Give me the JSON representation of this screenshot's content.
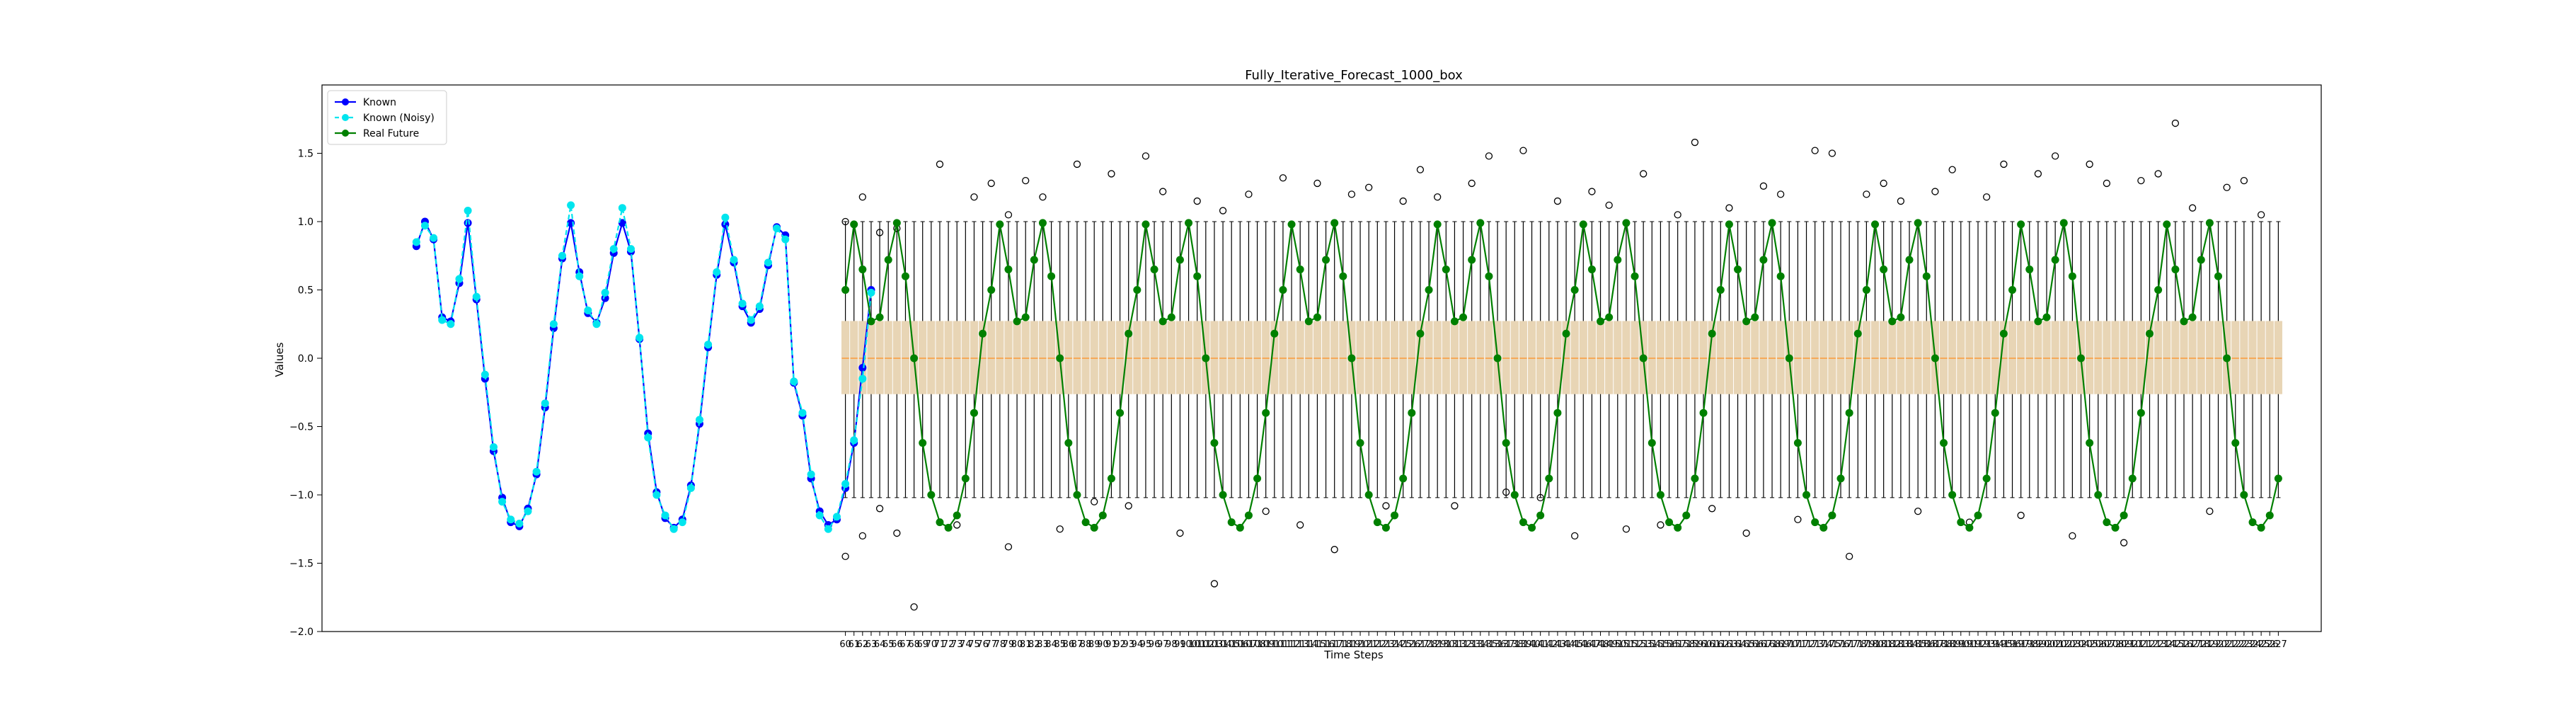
{
  "chart_data": {
    "type": "box",
    "title": "Fully_Iterative_Forecast_1000_box",
    "xlabel": "Time Steps",
    "ylabel": "Values",
    "ylim": [
      -2.0,
      2.0
    ],
    "y_ticks": [
      -2.0,
      -1.5,
      -1.0,
      -0.5,
      0.0,
      0.5,
      1.0,
      1.5
    ],
    "y_tick_labels": [
      "−2.0",
      "−1.5",
      "−1.0",
      "−0.5",
      "0.0",
      "0.5",
      "1.0",
      "1.5"
    ],
    "xlim": [
      -1,
      232
    ],
    "known_start": 10,
    "forecast_start": 60,
    "x_tick_start": 60,
    "x_tick_end": 227,
    "legend": {
      "position": "upper-left",
      "entries": [
        "Known",
        "Known (Noisy)",
        "Real Future"
      ]
    },
    "series": [
      {
        "name": "Known",
        "color": "#0000ff",
        "style": "line-dot",
        "x_start": 10,
        "values": [
          0.82,
          1.0,
          0.87,
          0.3,
          0.27,
          0.55,
          0.99,
          0.43,
          -0.15,
          -0.68,
          -1.02,
          -1.2,
          -1.23,
          -1.1,
          -0.85,
          -0.36,
          0.22,
          0.73,
          0.99,
          0.63,
          0.33,
          0.26,
          0.44,
          0.77,
          0.99,
          0.78,
          0.14,
          -0.55,
          -0.98,
          -1.17,
          -1.24,
          -1.18,
          -0.93,
          -0.48,
          0.08,
          0.61,
          0.98,
          0.7,
          0.38,
          0.26,
          0.36,
          0.68,
          0.96,
          0.9,
          -0.18,
          -0.42,
          -0.88,
          -1.12,
          -1.22,
          -1.18,
          -0.95,
          -0.62,
          -0.07,
          0.5
        ]
      },
      {
        "name": "Known (Noisy)",
        "color": "#00e5ee",
        "style": "dashed-dot",
        "x_start": 10,
        "values": [
          0.85,
          0.97,
          0.88,
          0.28,
          0.25,
          0.58,
          1.08,
          0.45,
          -0.12,
          -0.65,
          -1.05,
          -1.18,
          -1.21,
          -1.12,
          -0.83,
          -0.33,
          0.25,
          0.75,
          1.12,
          0.6,
          0.35,
          0.25,
          0.48,
          0.8,
          1.1,
          0.8,
          0.15,
          -0.58,
          -1.0,
          -1.15,
          -1.25,
          -1.2,
          -0.95,
          -0.45,
          0.1,
          0.63,
          1.03,
          0.72,
          0.4,
          0.28,
          0.38,
          0.7,
          0.95,
          0.87,
          -0.17,
          -0.4,
          -0.85,
          -1.15,
          -1.25,
          -1.16,
          -0.92,
          -0.6,
          -0.15,
          0.48
        ]
      },
      {
        "name": "Real Future",
        "color": "#008000",
        "style": "line-dot",
        "x_start": 60,
        "period": 17,
        "values_one_period": [
          0.5,
          0.98,
          0.65,
          0.27,
          0.3,
          0.72,
          0.99,
          0.6,
          0.0,
          -0.62,
          -1.0,
          -1.2,
          -1.24,
          -1.15,
          -0.88,
          -0.4,
          0.18
        ],
        "repeat_to_x": 227
      }
    ],
    "boxplots": {
      "x_start": 60,
      "x_end": 227,
      "median": 0.0,
      "q1": -0.26,
      "q3": 0.27,
      "whisker_low": -1.02,
      "whisker_high": 1.0,
      "box_color": "#e8d5b5",
      "median_color": "#ff8c1a",
      "outliers": [
        [
          60,
          1.0
        ],
        [
          60,
          -1.45
        ],
        [
          62,
          1.18
        ],
        [
          62,
          -1.3
        ],
        [
          64,
          0.92
        ],
        [
          64,
          -1.1
        ],
        [
          66,
          0.95
        ],
        [
          66,
          -1.28
        ],
        [
          68,
          -1.82
        ],
        [
          71,
          1.42
        ],
        [
          73,
          -1.22
        ],
        [
          75,
          1.18
        ],
        [
          77,
          1.28
        ],
        [
          79,
          1.05
        ],
        [
          79,
          -1.38
        ],
        [
          81,
          1.3
        ],
        [
          83,
          1.18
        ],
        [
          85,
          -1.25
        ],
        [
          87,
          1.42
        ],
        [
          89,
          -1.05
        ],
        [
          91,
          1.35
        ],
        [
          93,
          -1.08
        ],
        [
          95,
          1.48
        ],
        [
          97,
          1.22
        ],
        [
          99,
          -1.28
        ],
        [
          101,
          1.15
        ],
        [
          103,
          -1.65
        ],
        [
          104,
          1.08
        ],
        [
          107,
          1.2
        ],
        [
          109,
          -1.12
        ],
        [
          111,
          1.32
        ],
        [
          113,
          -1.22
        ],
        [
          115,
          1.28
        ],
        [
          117,
          -1.4
        ],
        [
          119,
          1.2
        ],
        [
          121,
          1.25
        ],
        [
          123,
          -1.08
        ],
        [
          125,
          1.15
        ],
        [
          127,
          1.38
        ],
        [
          129,
          1.18
        ],
        [
          131,
          -1.08
        ],
        [
          133,
          1.28
        ],
        [
          135,
          1.48
        ],
        [
          137,
          -0.98
        ],
        [
          139,
          1.52
        ],
        [
          141,
          -1.02
        ],
        [
          143,
          1.15
        ],
        [
          145,
          -1.3
        ],
        [
          147,
          1.22
        ],
        [
          149,
          1.12
        ],
        [
          151,
          -1.25
        ],
        [
          153,
          1.35
        ],
        [
          155,
          -1.22
        ],
        [
          157,
          1.05
        ],
        [
          159,
          1.58
        ],
        [
          161,
          -1.1
        ],
        [
          163,
          1.1
        ],
        [
          165,
          -1.28
        ],
        [
          167,
          1.26
        ],
        [
          169,
          1.2
        ],
        [
          171,
          -1.18
        ],
        [
          173,
          1.52
        ],
        [
          175,
          1.5
        ],
        [
          177,
          -1.45
        ],
        [
          179,
          1.2
        ],
        [
          181,
          1.28
        ],
        [
          183,
          1.15
        ],
        [
          185,
          -1.12
        ],
        [
          187,
          1.22
        ],
        [
          189,
          1.38
        ],
        [
          191,
          -1.2
        ],
        [
          193,
          1.18
        ],
        [
          195,
          1.42
        ],
        [
          197,
          -1.15
        ],
        [
          199,
          1.35
        ],
        [
          201,
          1.48
        ],
        [
          203,
          -1.3
        ],
        [
          205,
          1.42
        ],
        [
          207,
          1.28
        ],
        [
          209,
          -1.35
        ],
        [
          211,
          1.3
        ],
        [
          213,
          1.35
        ],
        [
          215,
          1.72
        ],
        [
          217,
          1.1
        ],
        [
          219,
          -1.12
        ],
        [
          221,
          1.25
        ],
        [
          223,
          1.3
        ],
        [
          225,
          1.05
        ]
      ]
    }
  }
}
